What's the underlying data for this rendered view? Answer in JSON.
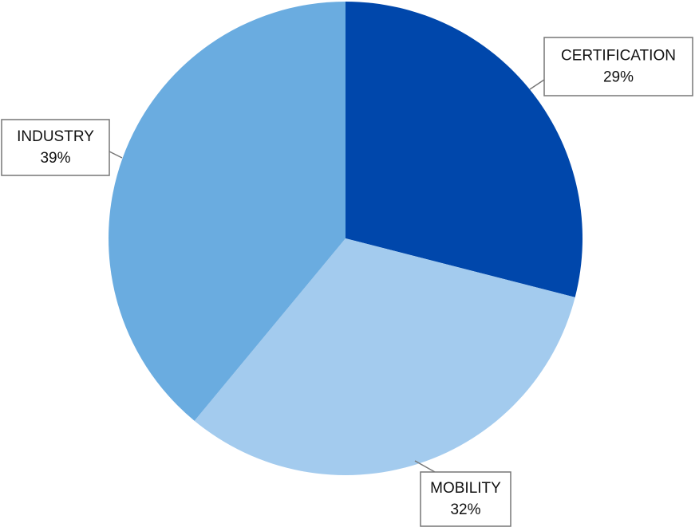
{
  "chart_data": {
    "type": "pie",
    "categories": [
      "CERTIFICATION",
      "MOBILITY",
      "INDUSTRY"
    ],
    "values": [
      29,
      32,
      39
    ],
    "value_labels": [
      "29%",
      "32%",
      "39%"
    ],
    "colors": [
      "#0047ab",
      "#a3cbee",
      "#6aace0"
    ]
  }
}
